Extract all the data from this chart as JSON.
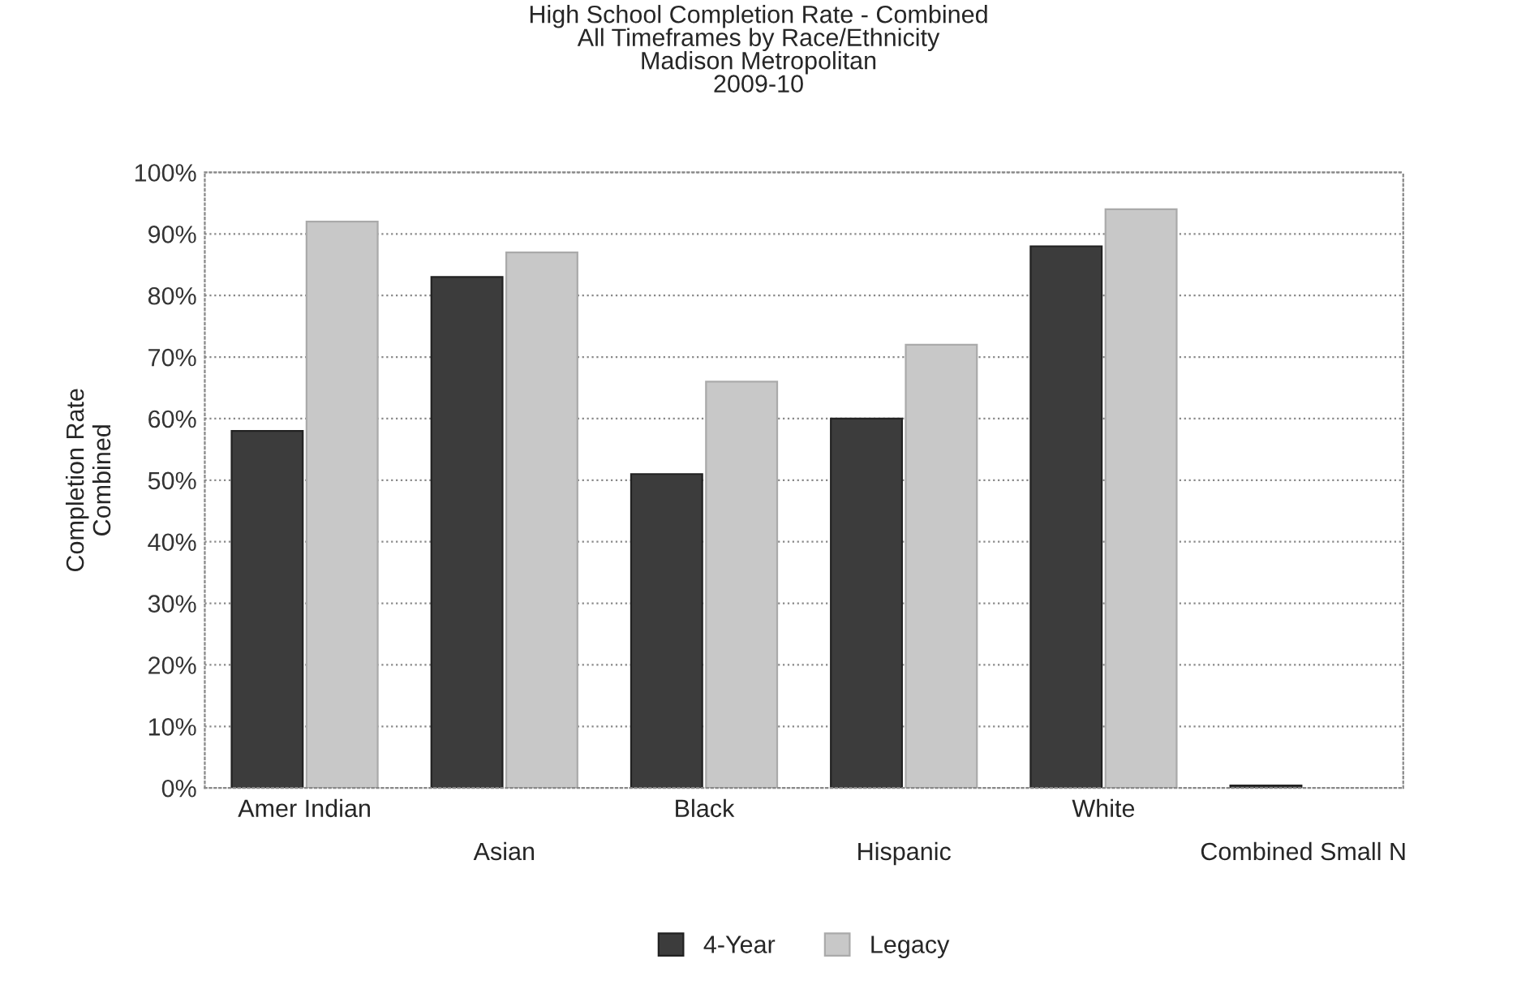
{
  "chart_data": {
    "type": "bar",
    "title": "High School Completion Rate - Combined\nAll Timeframes by Race/Ethnicity\nMadison Metropolitan\n2009-10",
    "ylabel": "Completion Rate\nCombined",
    "categories": [
      "Amer Indian",
      "Asian",
      "Black",
      "Hispanic",
      "White",
      "Combined Small N"
    ],
    "series": [
      {
        "name": "4-Year",
        "color": "#3c3c3c",
        "values": [
          58,
          83,
          51,
          60,
          88,
          0.4
        ]
      },
      {
        "name": "Legacy",
        "color": "#c8c8c8",
        "values": [
          92,
          87,
          66,
          72,
          94,
          null
        ]
      }
    ],
    "ylim": [
      0,
      100
    ],
    "yticks": [
      {
        "value": 0,
        "label": "0%"
      },
      {
        "value": 10,
        "label": "10%"
      },
      {
        "value": 20,
        "label": "20%"
      },
      {
        "value": 30,
        "label": "30%"
      },
      {
        "value": 40,
        "label": "40%"
      },
      {
        "value": 50,
        "label": "50%"
      },
      {
        "value": 60,
        "label": "60%"
      },
      {
        "value": 70,
        "label": "70%"
      },
      {
        "value": 80,
        "label": "80%"
      },
      {
        "value": 90,
        "label": "90%"
      },
      {
        "value": 100,
        "label": "100%"
      }
    ],
    "grid": "y",
    "legend": "bottom"
  }
}
